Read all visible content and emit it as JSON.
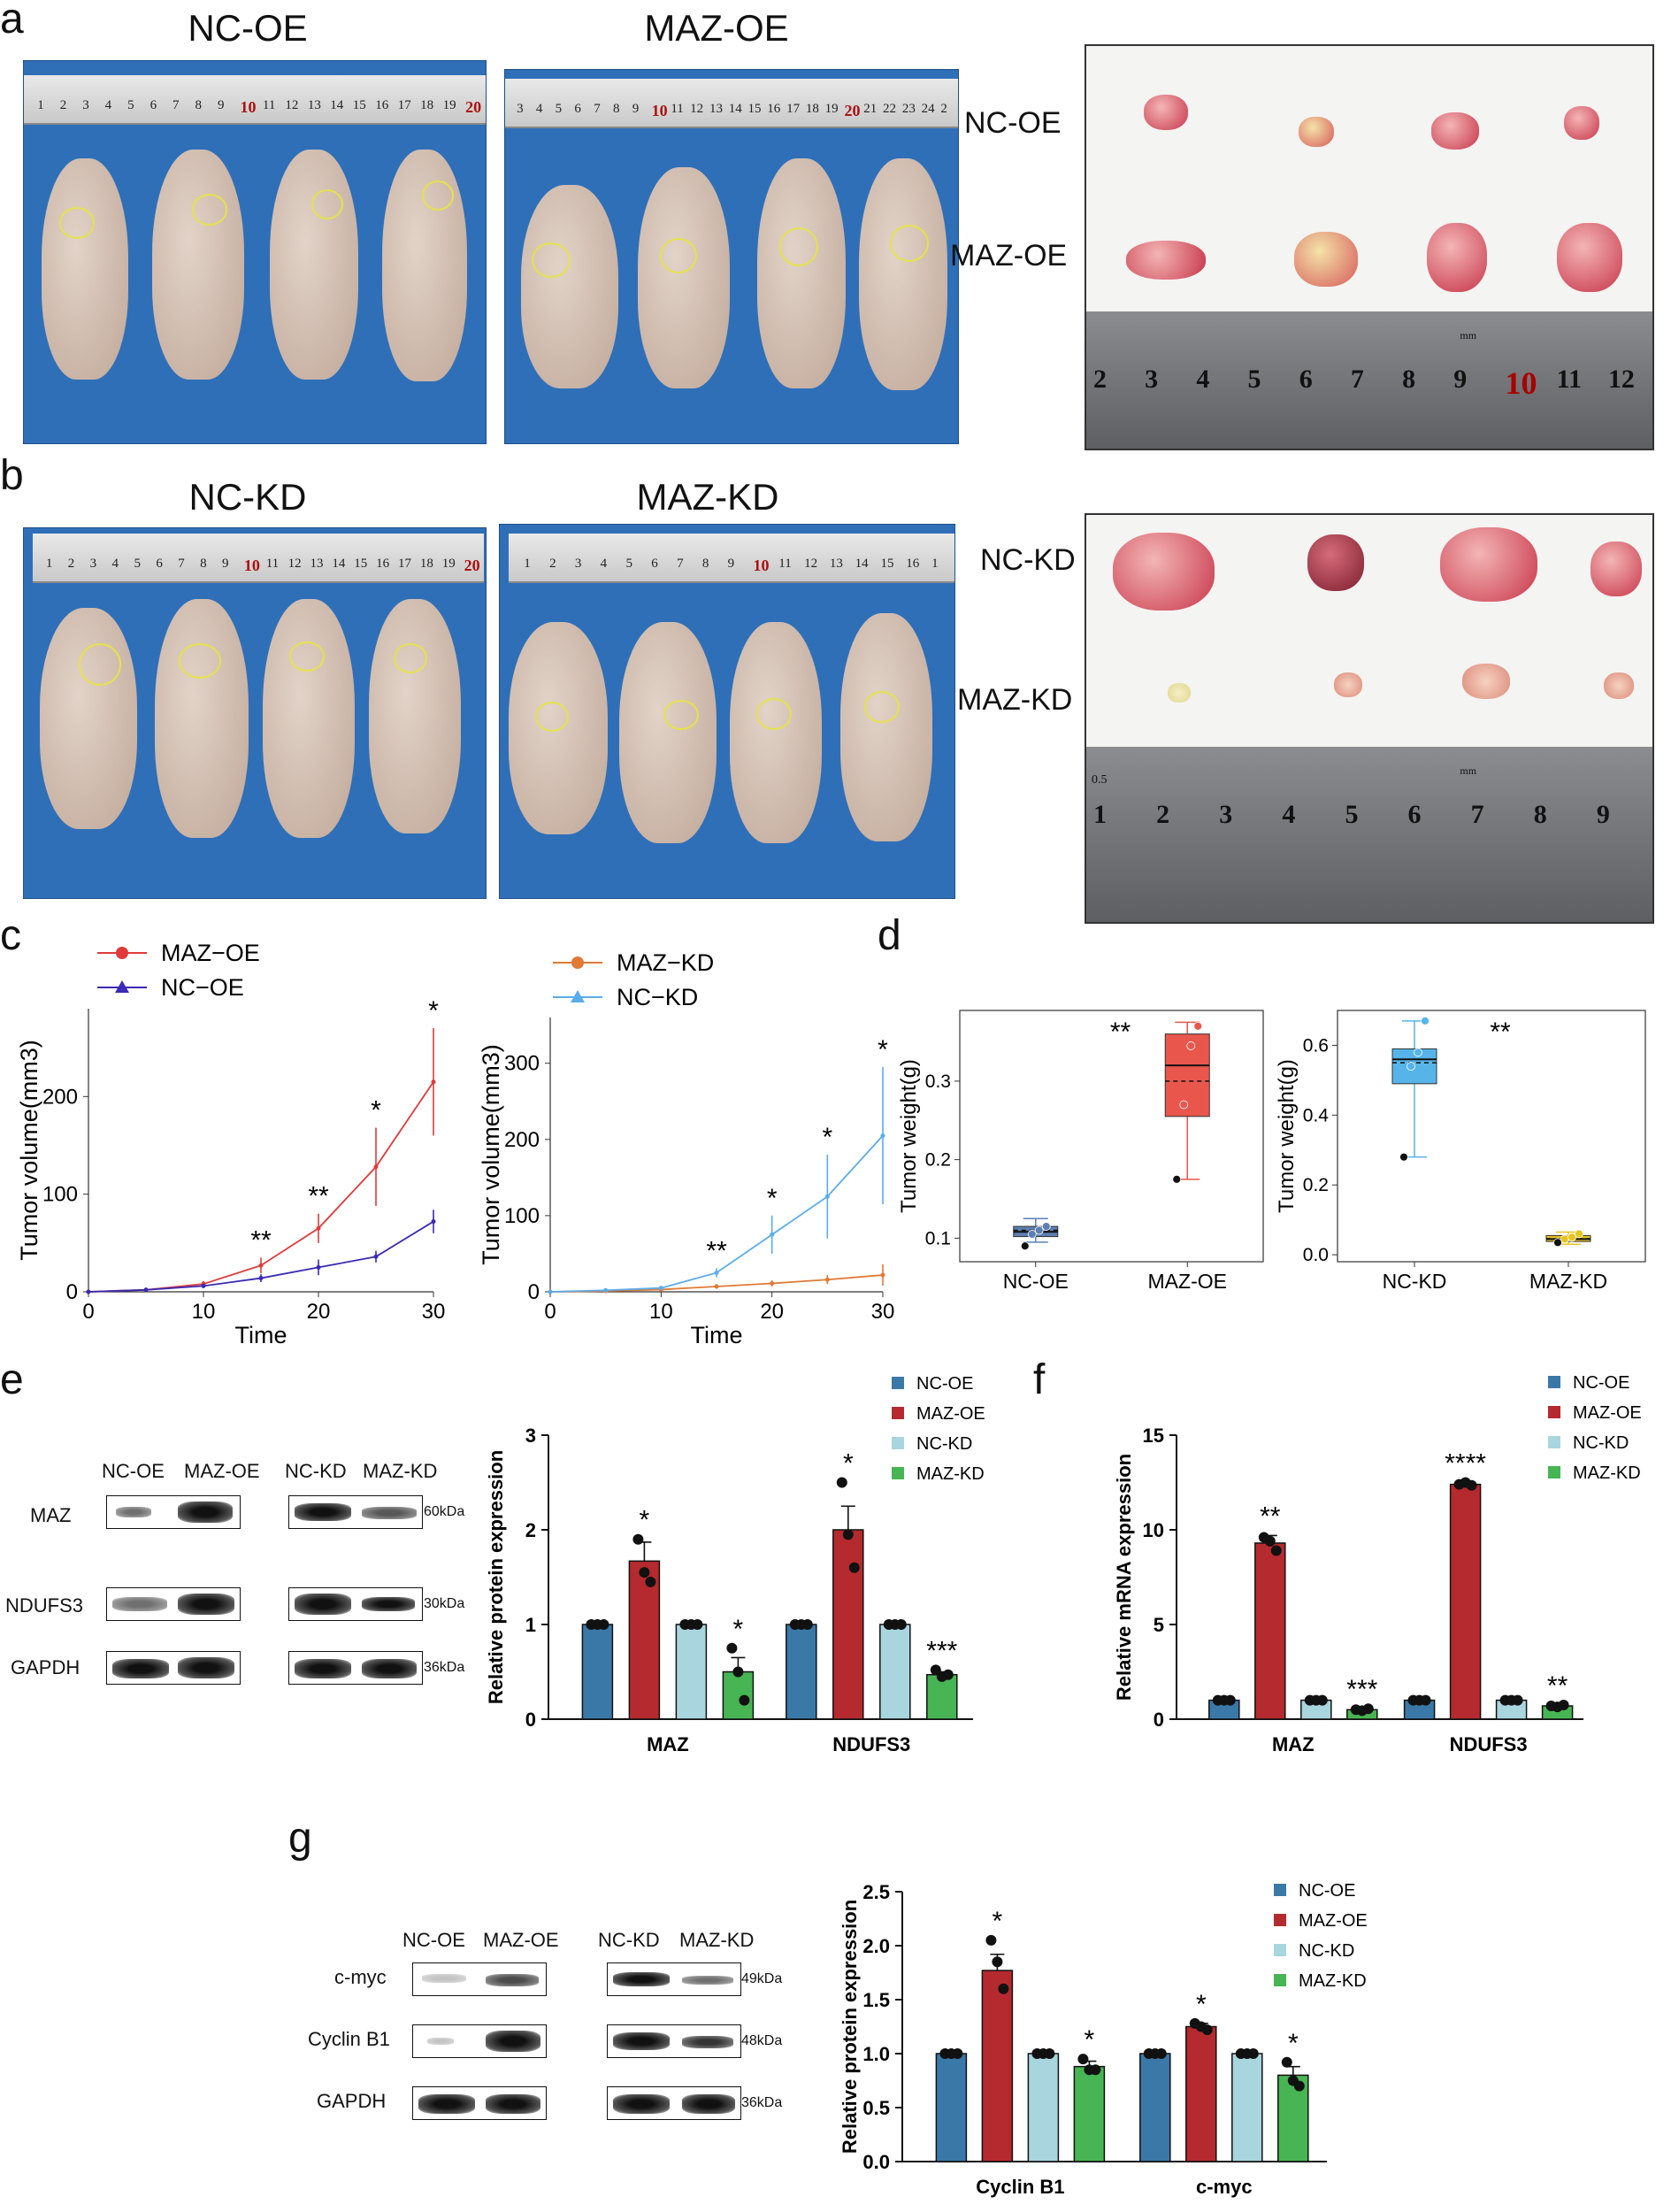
{
  "panels": {
    "a": {
      "label": "a",
      "left_title": "NC-OE",
      "right_title": "MAZ-OE",
      "tumor_rows": [
        "NC-OE",
        "MAZ-OE"
      ],
      "ruler_left": [
        "1",
        "2",
        "3",
        "4",
        "5",
        "6",
        "7",
        "8",
        "9",
        "10",
        "11",
        "12",
        "13",
        "14",
        "15",
        "16",
        "17",
        "18",
        "19",
        "20"
      ],
      "ruler_right": [
        "3",
        "4",
        "5",
        "6",
        "7",
        "8",
        "9",
        "10",
        "11",
        "12",
        "13",
        "14",
        "15",
        "16",
        "17",
        "18",
        "19",
        "20",
        "21",
        "22",
        "23",
        "24",
        "2"
      ],
      "steel_ruler": [
        "2",
        "3",
        "4",
        "5",
        "6",
        "7",
        "8",
        "9",
        "10",
        "11",
        "12"
      ],
      "steel_unit": "mm"
    },
    "b": {
      "label": "b",
      "left_title": "NC-KD",
      "right_title": "MAZ-KD",
      "tumor_rows": [
        "NC-KD",
        "MAZ-KD"
      ],
      "ruler_left": [
        "1",
        "2",
        "3",
        "4",
        "5",
        "6",
        "7",
        "8",
        "9",
        "10",
        "11",
        "12",
        "13",
        "14",
        "15",
        "16",
        "17",
        "18",
        "19",
        "20"
      ],
      "ruler_right": [
        "1",
        "2",
        "3",
        "4",
        "5",
        "6",
        "7",
        "8",
        "9",
        "10",
        "11",
        "12",
        "13",
        "14",
        "15",
        "16",
        "1"
      ],
      "steel_ruler": [
        "1",
        "2",
        "3",
        "4",
        "5",
        "6",
        "7",
        "8",
        "9"
      ],
      "steel_unit": "mm",
      "steel_small": "0.5"
    },
    "c": {
      "label": "c"
    },
    "d": {
      "label": "d"
    },
    "e": {
      "label": "e",
      "blot_groups": [
        "NC-OE",
        "MAZ-OE",
        "NC-KD",
        "MAZ-KD"
      ],
      "rows": [
        "MAZ",
        "NDUFS3",
        "GAPDH"
      ],
      "kda": [
        "60kDa",
        "30kDa",
        "36kDa"
      ]
    },
    "f": {
      "label": "f"
    },
    "g": {
      "label": "g",
      "blot_groups": [
        "NC-OE",
        "MAZ-OE",
        "NC-KD",
        "MAZ-KD"
      ],
      "rows": [
        "c-myc",
        "Cyclin B1",
        "GAPDH"
      ],
      "kda": [
        "49kDa",
        "48kDa",
        "36kDa"
      ]
    }
  },
  "colors": {
    "maz_oe_line": "#e03a3a",
    "nc_oe_line": "#3a2ab5",
    "maz_kd_line": "#e07a35",
    "nc_kd_line": "#5aacec",
    "bar_nc_oe": "#3a78a8",
    "bar_maz_oe": "#b52a2e",
    "bar_nc_kd": "#a9d5de",
    "bar_maz_kd": "#47b553",
    "box_nc_oe": "#5c7fb3",
    "box_maz_oe": "#e8564c",
    "box_nc_kd": "#56b4e9",
    "box_maz_kd": "#e8c41e"
  },
  "chart_data": [
    {
      "id": "c1",
      "type": "line",
      "xlabel": "Time",
      "ylabel": "Tumor volume(mm3)",
      "x": [
        0,
        5,
        10,
        15,
        20,
        25,
        30
      ],
      "xticks": [
        "0",
        "10",
        "20",
        "30"
      ],
      "yticks": [
        "0",
        "100",
        "200"
      ],
      "xlim": [
        0,
        30
      ],
      "ylim": [
        0,
        290
      ],
      "series": [
        {
          "name": "MAZ−OE",
          "values": [
            0,
            2,
            8,
            27,
            65,
            128,
            215
          ],
          "errors": [
            0,
            1,
            3,
            8,
            15,
            40,
            55
          ]
        },
        {
          "name": "NC−OE",
          "values": [
            0,
            2,
            6,
            14,
            25,
            36,
            72
          ],
          "errors": [
            0,
            1,
            2,
            4,
            8,
            6,
            12
          ]
        }
      ],
      "annotations": [
        {
          "x": 15,
          "text": "**"
        },
        {
          "x": 20,
          "text": "**"
        },
        {
          "x": 25,
          "text": "*"
        },
        {
          "x": 30,
          "text": "*"
        }
      ]
    },
    {
      "id": "c2",
      "type": "line",
      "xlabel": "Time",
      "ylabel": "Tumor volume(mm3)",
      "x": [
        0,
        5,
        10,
        15,
        20,
        25,
        30
      ],
      "xticks": [
        "0",
        "10",
        "20",
        "30"
      ],
      "yticks": [
        "0",
        "100",
        "200",
        "300"
      ],
      "xlim": [
        0,
        30
      ],
      "ylim": [
        0,
        360
      ],
      "series": [
        {
          "name": "MAZ−KD",
          "values": [
            0,
            1,
            3,
            7,
            11,
            16,
            22
          ],
          "errors": [
            0,
            0.5,
            1,
            3,
            4,
            6,
            14
          ]
        },
        {
          "name": "NC−KD",
          "values": [
            0,
            2,
            5,
            25,
            75,
            125,
            205
          ],
          "errors": [
            0,
            1,
            2,
            6,
            25,
            55,
            90
          ]
        }
      ],
      "annotations": [
        {
          "x": 15,
          "text": "**"
        },
        {
          "x": 20,
          "text": "*"
        },
        {
          "x": 25,
          "text": "*"
        },
        {
          "x": 30,
          "text": "*"
        }
      ]
    },
    {
      "id": "d1",
      "type": "box",
      "ylabel": "Tumor weight(g)",
      "categories": [
        "NC-OE",
        "MAZ-OE"
      ],
      "yticks": [
        "0.1",
        "0.2",
        "0.3"
      ],
      "ylim": [
        0.07,
        0.39
      ],
      "significance": "**",
      "boxes": [
        {
          "min": 0.095,
          "q1": 0.102,
          "median": 0.108,
          "mean": 0.11,
          "q3": 0.115,
          "max": 0.125,
          "points": [
            0.09,
            0.105,
            0.11,
            0.115
          ]
        },
        {
          "min": 0.175,
          "q1": 0.255,
          "median": 0.32,
          "mean": 0.3,
          "q3": 0.36,
          "max": 0.375,
          "points": [
            0.175,
            0.27,
            0.345,
            0.37
          ]
        }
      ]
    },
    {
      "id": "d2",
      "type": "box",
      "ylabel": "Tumor weight(g)",
      "categories": [
        "NC-KD",
        "MAZ-KD"
      ],
      "yticks": [
        "0.0",
        "0.2",
        "0.4",
        "0.6"
      ],
      "ylim": [
        -0.02,
        0.7
      ],
      "significance": "**",
      "boxes": [
        {
          "min": 0.28,
          "q1": 0.49,
          "median": 0.56,
          "mean": 0.55,
          "q3": 0.59,
          "max": 0.67,
          "points": [
            0.28,
            0.54,
            0.58,
            0.67
          ]
        },
        {
          "min": 0.03,
          "q1": 0.038,
          "median": 0.045,
          "mean": 0.046,
          "q3": 0.055,
          "max": 0.065,
          "points": [
            0.035,
            0.045,
            0.05,
            0.06
          ]
        }
      ]
    },
    {
      "id": "e",
      "type": "bar",
      "ylabel": "Relative protein expression",
      "categories": [
        "MAZ",
        "NDUFS3"
      ],
      "yticks": [
        "0",
        "1",
        "2",
        "3"
      ],
      "ylim": [
        0,
        3
      ],
      "series": [
        {
          "name": "NC-OE",
          "values": [
            1,
            1
          ],
          "errors": [
            0,
            0
          ],
          "points": [
            [
              1,
              1,
              1
            ],
            [
              1,
              1,
              1
            ]
          ],
          "sig": [
            "",
            ""
          ]
        },
        {
          "name": "MAZ-OE",
          "values": [
            1.67,
            2.0
          ],
          "errors": [
            0.2,
            0.25
          ],
          "points": [
            [
              1.9,
              1.55,
              1.45
            ],
            [
              2.5,
              1.95,
              1.6
            ]
          ],
          "sig": [
            "*",
            "*"
          ]
        },
        {
          "name": "NC-KD",
          "values": [
            1,
            1
          ],
          "errors": [
            0,
            0
          ],
          "points": [
            [
              1,
              1,
              1
            ],
            [
              1,
              1,
              1
            ]
          ],
          "sig": [
            "",
            ""
          ]
        },
        {
          "name": "MAZ-KD",
          "values": [
            0.5,
            0.47
          ],
          "errors": [
            0.15,
            0.03
          ],
          "points": [
            [
              0.75,
              0.5,
              0.2
            ],
            [
              0.52,
              0.45,
              0.47
            ]
          ],
          "sig": [
            "*",
            "***"
          ]
        }
      ]
    },
    {
      "id": "f",
      "type": "bar",
      "ylabel": "Relative mRNA expression",
      "categories": [
        "MAZ",
        "NDUFS3"
      ],
      "yticks": [
        "0",
        "5",
        "10",
        "15"
      ],
      "ylim": [
        0,
        15
      ],
      "series": [
        {
          "name": "NC-OE",
          "values": [
            1,
            1
          ],
          "errors": [
            0.05,
            0.05
          ],
          "points": [
            [
              1,
              1,
              1
            ],
            [
              1,
              1,
              1
            ]
          ],
          "sig": [
            "",
            ""
          ]
        },
        {
          "name": "MAZ-OE",
          "values": [
            9.3,
            12.4
          ],
          "errors": [
            0.4,
            0.1
          ],
          "points": [
            [
              9.6,
              9.4,
              8.9
            ],
            [
              12.4,
              12.5,
              12.35
            ]
          ],
          "sig": [
            "**",
            "****"
          ]
        },
        {
          "name": "NC-KD",
          "values": [
            1,
            1
          ],
          "errors": [
            0.05,
            0.05
          ],
          "points": [
            [
              1,
              1,
              1
            ],
            [
              1,
              1,
              1
            ]
          ],
          "sig": [
            "",
            ""
          ]
        },
        {
          "name": "MAZ-KD",
          "values": [
            0.5,
            0.7
          ],
          "errors": [
            0.05,
            0.05
          ],
          "points": [
            [
              0.5,
              0.45,
              0.55
            ],
            [
              0.7,
              0.65,
              0.75
            ]
          ],
          "sig": [
            "***",
            "**"
          ]
        }
      ]
    },
    {
      "id": "g",
      "type": "bar",
      "ylabel": "Relative protein expression",
      "categories": [
        "Cyclin B1",
        "c-myc"
      ],
      "yticks": [
        "0.0",
        "0.5",
        "1.0",
        "1.5",
        "2.0",
        "2.5"
      ],
      "ylim": [
        0,
        2.5
      ],
      "series": [
        {
          "name": "NC-OE",
          "values": [
            1,
            1
          ],
          "errors": [
            0,
            0
          ],
          "points": [
            [
              1,
              1,
              1
            ],
            [
              1,
              1,
              1
            ]
          ],
          "sig": [
            "",
            ""
          ]
        },
        {
          "name": "MAZ-OE",
          "values": [
            1.77,
            1.25
          ],
          "errors": [
            0.15,
            0.03
          ],
          "points": [
            [
              2.05,
              1.85,
              1.6
            ],
            [
              1.28,
              1.25,
              1.22
            ]
          ],
          "sig": [
            "*",
            "*"
          ]
        },
        {
          "name": "NC-KD",
          "values": [
            1,
            1
          ],
          "errors": [
            0,
            0
          ],
          "points": [
            [
              1,
              1,
              1
            ],
            [
              1,
              1,
              1
            ]
          ],
          "sig": [
            "",
            ""
          ]
        },
        {
          "name": "MAZ-KD",
          "values": [
            0.88,
            0.8
          ],
          "errors": [
            0.05,
            0.08
          ],
          "points": [
            [
              0.95,
              0.85,
              0.85
            ],
            [
              0.92,
              0.75,
              0.7
            ]
          ],
          "sig": [
            "*",
            "*"
          ]
        }
      ]
    }
  ]
}
